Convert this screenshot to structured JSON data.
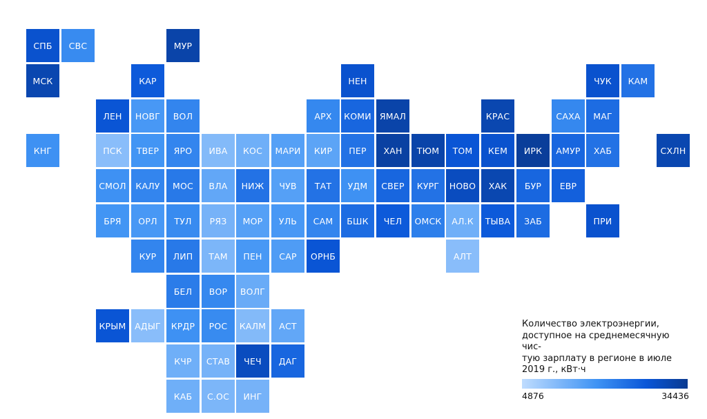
{
  "chart_data": {
    "type": "heatmap",
    "legend": {
      "title": "Количество электроэнергии, доступное на среднемесячную чис-ту́ю зарплату в регионе в июле 2019 г., кВт·ч",
      "title_lines": [
        "Количество электроэнергии,",
        "доступное на среднемесячную чис-",
        "тую зарплату в регионе в июле",
        "2019 г., кВт·ч"
      ],
      "min": 4876,
      "max": 34436,
      "min_label": "4876",
      "max_label": "34436",
      "colors": [
        "#bfdcfe",
        "#3f93f4",
        "#0a56d8",
        "#0a3a90"
      ]
    },
    "regions": [
      {
        "label": "СПБ",
        "col": 0,
        "row": 0,
        "value": 26000
      },
      {
        "label": "СВС",
        "col": 1,
        "row": 0,
        "value": 16000
      },
      {
        "label": "МУР",
        "col": 4,
        "row": 0,
        "value": 31000
      },
      {
        "label": "МСК",
        "col": 0,
        "row": 1,
        "value": 30000
      },
      {
        "label": "КАР",
        "col": 3,
        "row": 1,
        "value": 24000
      },
      {
        "label": "НЕН",
        "col": 9,
        "row": 1,
        "value": 26000
      },
      {
        "label": "ЧУК",
        "col": 16,
        "row": 1,
        "value": 26000
      },
      {
        "label": "КАМ",
        "col": 17,
        "row": 1,
        "value": 20000
      },
      {
        "label": "ЛЕН",
        "col": 2,
        "row": 2,
        "value": 25000
      },
      {
        "label": "НОВГ",
        "col": 3,
        "row": 2,
        "value": 14000
      },
      {
        "label": "ВОЛ",
        "col": 4,
        "row": 2,
        "value": 17000
      },
      {
        "label": "АРХ",
        "col": 8,
        "row": 2,
        "value": 16500
      },
      {
        "label": "КОМИ",
        "col": 9,
        "row": 2,
        "value": 22000
      },
      {
        "label": "ЯМАЛ",
        "col": 10,
        "row": 2,
        "value": 31000
      },
      {
        "label": "КРАС",
        "col": 13,
        "row": 2,
        "value": 30000
      },
      {
        "label": "САХА",
        "col": 15,
        "row": 2,
        "value": 16500
      },
      {
        "label": "МАГ",
        "col": 16,
        "row": 2,
        "value": 21000
      },
      {
        "label": "КНГ",
        "col": 0,
        "row": 3,
        "value": 15000
      },
      {
        "label": "ПСК",
        "col": 2,
        "row": 3,
        "value": 9000
      },
      {
        "label": "ТВЕР",
        "col": 3,
        "row": 3,
        "value": 14500
      },
      {
        "label": "ЯРО",
        "col": 4,
        "row": 3,
        "value": 17000
      },
      {
        "label": "ИВА",
        "col": 5,
        "row": 3,
        "value": 9500
      },
      {
        "label": "КОС",
        "col": 6,
        "row": 3,
        "value": 11000
      },
      {
        "label": "МАРИ",
        "col": 7,
        "row": 3,
        "value": 13000
      },
      {
        "label": "КИР",
        "col": 8,
        "row": 3,
        "value": 12500
      },
      {
        "label": "ПЕР",
        "col": 9,
        "row": 3,
        "value": 20000
      },
      {
        "label": "ХАН",
        "col": 10,
        "row": 3,
        "value": 32000
      },
      {
        "label": "ТЮМ",
        "col": 11,
        "row": 3,
        "value": 31000
      },
      {
        "label": "ТОМ",
        "col": 12,
        "row": 3,
        "value": 25000
      },
      {
        "label": "КЕМ",
        "col": 13,
        "row": 3,
        "value": 26000
      },
      {
        "label": "ИРК",
        "col": 14,
        "row": 3,
        "value": 33000
      },
      {
        "label": "АМУР",
        "col": 15,
        "row": 3,
        "value": 22000
      },
      {
        "label": "ХАБ",
        "col": 16,
        "row": 3,
        "value": 20000
      },
      {
        "label": "СХЛН",
        "col": 18,
        "row": 3,
        "value": 30000
      },
      {
        "label": "СМОЛ",
        "col": 2,
        "row": 4,
        "value": 15000
      },
      {
        "label": "КАЛУ",
        "col": 3,
        "row": 4,
        "value": 17000
      },
      {
        "label": "МОС",
        "col": 4,
        "row": 4,
        "value": 19000
      },
      {
        "label": "ВЛА",
        "col": 5,
        "row": 4,
        "value": 12000
      },
      {
        "label": "НИЖ",
        "col": 6,
        "row": 4,
        "value": 20000
      },
      {
        "label": "ЧУВ",
        "col": 7,
        "row": 4,
        "value": 13000
      },
      {
        "label": "ТАТ",
        "col": 8,
        "row": 4,
        "value": 20000
      },
      {
        "label": "УДМ",
        "col": 9,
        "row": 4,
        "value": 15000
      },
      {
        "label": "СВЕР",
        "col": 10,
        "row": 4,
        "value": 22000
      },
      {
        "label": "КУРГ",
        "col": 11,
        "row": 4,
        "value": 20000
      },
      {
        "label": "НОВО",
        "col": 12,
        "row": 4,
        "value": 28000
      },
      {
        "label": "ХАК",
        "col": 13,
        "row": 4,
        "value": 30000
      },
      {
        "label": "БУР",
        "col": 14,
        "row": 4,
        "value": 22000
      },
      {
        "label": "ЕВР",
        "col": 15,
        "row": 4,
        "value": 23000
      },
      {
        "label": "БРЯ",
        "col": 2,
        "row": 5,
        "value": 14500
      },
      {
        "label": "ОРЛ",
        "col": 3,
        "row": 5,
        "value": 14000
      },
      {
        "label": "ТУЛ",
        "col": 4,
        "row": 5,
        "value": 16000
      },
      {
        "label": "РЯЗ",
        "col": 5,
        "row": 5,
        "value": 10500
      },
      {
        "label": "МОР",
        "col": 6,
        "row": 5,
        "value": 13000
      },
      {
        "label": "УЛЬ",
        "col": 7,
        "row": 5,
        "value": 14000
      },
      {
        "label": "САМ",
        "col": 8,
        "row": 5,
        "value": 17000
      },
      {
        "label": "БШК",
        "col": 9,
        "row": 5,
        "value": 21000
      },
      {
        "label": "ЧЕЛ",
        "col": 10,
        "row": 5,
        "value": 24000
      },
      {
        "label": "ОМСК",
        "col": 11,
        "row": 5,
        "value": 18000
      },
      {
        "label": "АЛ.К",
        "col": 12,
        "row": 5,
        "value": 11000
      },
      {
        "label": "ТЫВА",
        "col": 13,
        "row": 5,
        "value": 24000
      },
      {
        "label": "ЗАБ",
        "col": 14,
        "row": 5,
        "value": 21000
      },
      {
        "label": "ПРИ",
        "col": 16,
        "row": 5,
        "value": 26000
      },
      {
        "label": "КУР",
        "col": 3,
        "row": 6,
        "value": 17000
      },
      {
        "label": "ЛИП",
        "col": 4,
        "row": 6,
        "value": 19000
      },
      {
        "label": "ТАМ",
        "col": 5,
        "row": 6,
        "value": 10000
      },
      {
        "label": "ПЕН",
        "col": 6,
        "row": 6,
        "value": 14000
      },
      {
        "label": "САР",
        "col": 7,
        "row": 6,
        "value": 13500
      },
      {
        "label": "ОРНБ",
        "col": 8,
        "row": 6,
        "value": 25000
      },
      {
        "label": "АЛТ",
        "col": 12,
        "row": 6,
        "value": 9000
      },
      {
        "label": "БЕЛ",
        "col": 4,
        "row": 7,
        "value": 18500
      },
      {
        "label": "ВОР",
        "col": 5,
        "row": 7,
        "value": 16500
      },
      {
        "label": "ВОЛГ",
        "col": 6,
        "row": 7,
        "value": 11500
      },
      {
        "label": "КРЫМ",
        "col": 2,
        "row": 8,
        "value": 25000
      },
      {
        "label": "АДЫГ",
        "col": 3,
        "row": 8,
        "value": 9000
      },
      {
        "label": "КРДР",
        "col": 4,
        "row": 8,
        "value": 15000
      },
      {
        "label": "РОС",
        "col": 5,
        "row": 8,
        "value": 16000
      },
      {
        "label": "КАЛМ",
        "col": 6,
        "row": 8,
        "value": 9500
      },
      {
        "label": "АСТ",
        "col": 7,
        "row": 8,
        "value": 12000
      },
      {
        "label": "КЧР",
        "col": 4,
        "row": 9,
        "value": 11000
      },
      {
        "label": "СТАВ",
        "col": 5,
        "row": 9,
        "value": 10500
      },
      {
        "label": "ЧЕЧ",
        "col": 6,
        "row": 9,
        "value": 28000
      },
      {
        "label": "ДАГ",
        "col": 7,
        "row": 9,
        "value": 22000
      },
      {
        "label": "КАБ",
        "col": 4,
        "row": 10,
        "value": 11000
      },
      {
        "label": "С.ОС",
        "col": 5,
        "row": 10,
        "value": 10000
      },
      {
        "label": "ИНГ",
        "col": 6,
        "row": 10,
        "value": 10500
      }
    ]
  }
}
